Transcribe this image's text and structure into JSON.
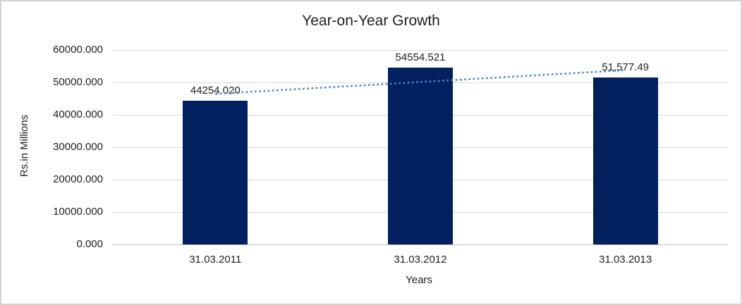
{
  "chart_data": {
    "type": "bar",
    "title": "Year-on-Year Growth",
    "xlabel": "Years",
    "ylabel": "Rs.in Millions",
    "categories": [
      "31.03.2011",
      "31.03.2012",
      "31.03.2013"
    ],
    "values": [
      44254.02,
      54554.521,
      51577.49
    ],
    "data_labels": [
      "44254.020",
      "54554.521",
      "51,577.49"
    ],
    "ylim": [
      0,
      60000
    ],
    "ytick_step": 10000,
    "ytick_labels": [
      "0.000",
      "10000.000",
      "20000.000",
      "30000.000",
      "40000.000",
      "50000.000",
      "60000.000"
    ],
    "grid": true,
    "legend": "none",
    "bar_color": "#002060",
    "trendline": {
      "type": "linear",
      "style": "dotted",
      "color": "#4a86c8"
    }
  }
}
